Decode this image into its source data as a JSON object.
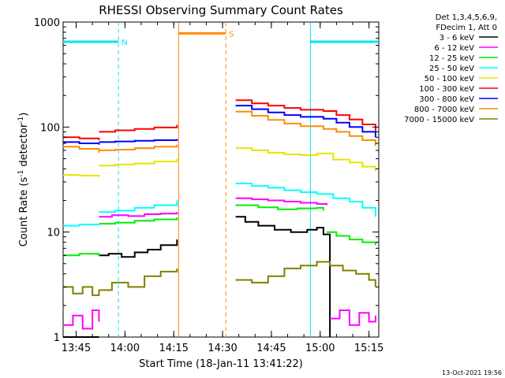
{
  "chart_data": {
    "type": "line",
    "title": "RHESSI Observing Summary Count Rates",
    "xlabel": "Start Time (18-Jan-11 13:41:22)",
    "ylabel_main": "Count Rate (s",
    "ylabel_sup1": "-1",
    "ylabel_mid": " detector",
    "ylabel_sup2": "-1",
    "ylabel_end": ")",
    "x_unit": "minutes after 13:41:22",
    "xlim": [
      0,
      97
    ],
    "ylim": [
      1,
      1000
    ],
    "yscale": "log",
    "grid": false,
    "x_ticks": [
      {
        "label": "13:45",
        "x": 4
      },
      {
        "label": "14:00",
        "x": 19
      },
      {
        "label": "14:15",
        "x": 34
      },
      {
        "label": "14:30",
        "x": 49
      },
      {
        "label": "14:45",
        "x": 64
      },
      {
        "label": "15:00",
        "x": 79
      },
      {
        "label": "15:15",
        "x": 94
      }
    ],
    "y_ticks": [
      {
        "label": "1",
        "y": 1
      },
      {
        "label": "10",
        "y": 10
      },
      {
        "label": "100",
        "y": 100
      },
      {
        "label": "1000",
        "y": 1000
      }
    ],
    "legend_header": [
      "Det 1,3,4,5,6,9,",
      "FDecim 1, Att 0"
    ],
    "legend_position": "right",
    "timestamp": "13-Oct-2021 19:56",
    "markers": [
      {
        "label": "N",
        "type": "night",
        "color": "#00e5ee",
        "start": 0,
        "end": 17,
        "level": 650
      },
      {
        "label": "S",
        "type": "saa",
        "color": "#ff8c00",
        "start": 35.5,
        "end": 50,
        "level": 780
      },
      {
        "label": "",
        "type": "night",
        "color": "#00e5ee",
        "start": 76,
        "end": 97,
        "level": 650
      }
    ],
    "gap": [
      36,
      53
    ],
    "series": [
      {
        "name": "3 - 6 keV",
        "color": "#000000",
        "segments": [
          [
            [
              0,
              0
            ],
            [
              11,
              0
            ]
          ],
          [
            [
              11,
              6.0
            ],
            [
              14,
              6.2
            ],
            [
              18,
              5.8
            ],
            [
              22,
              6.4
            ],
            [
              26,
              6.8
            ],
            [
              30,
              7.5
            ],
            [
              35,
              8.5
            ]
          ],
          [
            [
              53,
              14
            ],
            [
              56,
              12.5
            ],
            [
              60,
              11.5
            ],
            [
              65,
              10.5
            ],
            [
              70,
              10.0
            ],
            [
              75,
              10.5
            ],
            [
              78,
              11
            ],
            [
              80,
              9.5
            ],
            [
              82,
              0
            ]
          ]
        ]
      },
      {
        "name": "6 - 12 keV",
        "color": "#ff00ff",
        "segments": [
          [
            [
              0,
              1.3
            ],
            [
              3,
              1.6
            ],
            [
              6,
              1.2
            ],
            [
              9,
              1.8
            ],
            [
              11,
              1.4
            ]
          ],
          [
            [
              11,
              14
            ],
            [
              15,
              14.5
            ],
            [
              20,
              14.2
            ],
            [
              25,
              14.8
            ],
            [
              30,
              15
            ],
            [
              35,
              15.5
            ]
          ],
          [
            [
              53,
              21
            ],
            [
              58,
              20.5
            ],
            [
              63,
              20
            ],
            [
              68,
              19.5
            ],
            [
              73,
              19
            ],
            [
              78,
              18.5
            ],
            [
              81,
              18
            ]
          ],
          [
            [
              82,
              1.5
            ],
            [
              85,
              1.8
            ],
            [
              88,
              1.3
            ],
            [
              91,
              1.7
            ],
            [
              94,
              1.4
            ],
            [
              96,
              1.6
            ]
          ]
        ]
      },
      {
        "name": "12 - 25 keV",
        "color": "#00ee00",
        "segments": [
          [
            [
              0,
              6.0
            ],
            [
              5,
              6.2
            ],
            [
              11,
              5.9
            ]
          ],
          [
            [
              11,
              12
            ],
            [
              16,
              12.3
            ],
            [
              22,
              12.8
            ],
            [
              28,
              13.2
            ],
            [
              35,
              13.8
            ]
          ],
          [
            [
              53,
              18
            ],
            [
              60,
              17.2
            ],
            [
              66,
              16.5
            ],
            [
              72,
              16.8
            ],
            [
              78,
              17
            ],
            [
              80,
              16
            ]
          ],
          [
            [
              81,
              10
            ],
            [
              84,
              9.2
            ],
            [
              88,
              8.5
            ],
            [
              92,
              8.0
            ],
            [
              96,
              7.5
            ]
          ]
        ]
      },
      {
        "name": "25 - 50 keV",
        "color": "#00ffff",
        "segments": [
          [
            [
              0,
              11.5
            ],
            [
              5,
              11.8
            ],
            [
              11,
              12
            ]
          ],
          [
            [
              11,
              15.5
            ],
            [
              16,
              16
            ],
            [
              22,
              17
            ],
            [
              28,
              18
            ],
            [
              35,
              20
            ]
          ],
          [
            [
              53,
              29
            ],
            [
              58,
              27.5
            ],
            [
              63,
              26.5
            ],
            [
              68,
              25
            ],
            [
              73,
              24
            ],
            [
              78,
              23
            ],
            [
              83,
              21
            ],
            [
              88,
              19.5
            ],
            [
              92,
              17
            ],
            [
              96,
              14
            ]
          ]
        ]
      },
      {
        "name": "50 - 100 keV",
        "color": "#e5e500",
        "segments": [
          [
            [
              0,
              35
            ],
            [
              5,
              34.5
            ],
            [
              11,
              33.5
            ]
          ],
          [
            [
              11,
              43
            ],
            [
              16,
              44
            ],
            [
              22,
              45
            ],
            [
              28,
              47
            ],
            [
              35,
              50
            ]
          ],
          [
            [
              53,
              63
            ],
            [
              58,
              60
            ],
            [
              63,
              57
            ],
            [
              68,
              55
            ],
            [
              73,
              54
            ],
            [
              78,
              56
            ],
            [
              83,
              49
            ],
            [
              88,
              46
            ],
            [
              92,
              42
            ],
            [
              96,
              38
            ]
          ]
        ]
      },
      {
        "name": "100 - 300 keV",
        "color": "#ff0000",
        "segments": [
          [
            [
              0,
              80
            ],
            [
              5,
              78
            ],
            [
              11,
              75
            ]
          ],
          [
            [
              11,
              90
            ],
            [
              16,
              93
            ],
            [
              22,
              96
            ],
            [
              28,
              99
            ],
            [
              35,
              105
            ]
          ],
          [
            [
              53,
              180
            ],
            [
              58,
              168
            ],
            [
              63,
              160
            ],
            [
              68,
              152
            ],
            [
              73,
              146
            ],
            [
              80,
              142
            ],
            [
              84,
              130
            ],
            [
              88,
              118
            ],
            [
              92,
              106
            ],
            [
              96,
              92
            ]
          ]
        ]
      },
      {
        "name": "300 - 800 keV",
        "color": "#0000ff",
        "segments": [
          [
            [
              0,
              72
            ],
            [
              5,
              70
            ],
            [
              11,
              68
            ]
          ],
          [
            [
              11,
              72
            ],
            [
              16,
              73
            ],
            [
              22,
              74
            ],
            [
              28,
              75
            ],
            [
              35,
              77
            ]
          ],
          [
            [
              53,
              160
            ],
            [
              58,
              148
            ],
            [
              63,
              138
            ],
            [
              68,
              130
            ],
            [
              73,
              125
            ],
            [
              80,
              120
            ],
            [
              84,
              110
            ],
            [
              88,
              100
            ],
            [
              92,
              90
            ],
            [
              96,
              80
            ]
          ]
        ]
      },
      {
        "name": "800 - 7000 keV",
        "color": "#ff8c00",
        "segments": [
          [
            [
              0,
              65
            ],
            [
              5,
              62
            ],
            [
              11,
              57
            ]
          ],
          [
            [
              11,
              60
            ],
            [
              16,
              61
            ],
            [
              22,
              63
            ],
            [
              28,
              65
            ],
            [
              35,
              68
            ]
          ],
          [
            [
              53,
              140
            ],
            [
              58,
              128
            ],
            [
              63,
              117
            ],
            [
              68,
              108
            ],
            [
              73,
              102
            ],
            [
              80,
              96
            ],
            [
              84,
              90
            ],
            [
              88,
              82
            ],
            [
              92,
              75
            ],
            [
              96,
              66
            ]
          ]
        ]
      },
      {
        "name": "7000 - 15000 keV",
        "color": "#808000",
        "segments": [
          [
            [
              0,
              3.0
            ],
            [
              3,
              2.6
            ],
            [
              6,
              3.0
            ],
            [
              9,
              2.5
            ],
            [
              11,
              2.8
            ]
          ],
          [
            [
              11,
              2.8
            ],
            [
              15,
              3.3
            ],
            [
              20,
              3.0
            ],
            [
              25,
              3.8
            ],
            [
              30,
              4.2
            ],
            [
              35,
              4.5
            ]
          ],
          [
            [
              53,
              3.5
            ],
            [
              58,
              3.3
            ],
            [
              63,
              3.8
            ],
            [
              68,
              4.5
            ],
            [
              73,
              4.8
            ],
            [
              78,
              5.2
            ],
            [
              82,
              4.8
            ],
            [
              86,
              4.3
            ],
            [
              90,
              4.0
            ],
            [
              94,
              3.5
            ],
            [
              96,
              3.0
            ]
          ]
        ]
      }
    ]
  }
}
